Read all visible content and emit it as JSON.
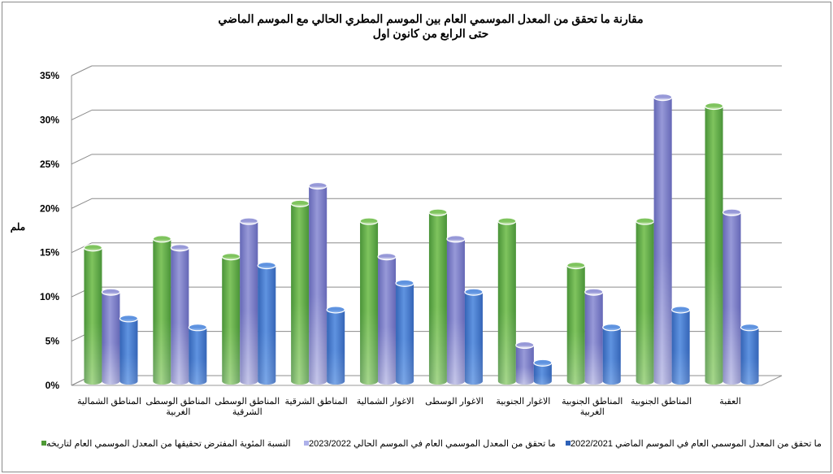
{
  "chart_data": {
    "type": "bar",
    "title": "مقارنة ما تحقق من المعدل الموسمي العام بين الموسم المطري الحالي مع الموسم الماضي",
    "subtitle": "حتى الرابع من كانون اول",
    "ylabel": "ملم",
    "ylim": [
      0,
      35
    ],
    "yticks": [
      "0%",
      "5%",
      "10%",
      "15%",
      "20%",
      "25%",
      "30%",
      "35%"
    ],
    "grid": true,
    "legend_position": "bottom",
    "categories": [
      [
        "المناطق الشمالية"
      ],
      [
        "المناطق الوسطى",
        "الغربية"
      ],
      [
        "المناطق الوسطى",
        "الشرقية"
      ],
      [
        "المناطق الشرقية"
      ],
      [
        "الاغوار الشمالية"
      ],
      [
        "الاغوار الوسطى"
      ],
      [
        "الاغوار الجنوبية"
      ],
      [
        "المناطق الجنوبية",
        "الغربية"
      ],
      [
        "المناطق الجنوبية"
      ],
      [
        "العقبة"
      ]
    ],
    "series": [
      {
        "name": "النسبة المئوية المفترض تحقيقها من المعدل الموسمي العام لتاريخه",
        "color": "#4e9a35",
        "values": [
          15,
          16,
          14,
          20,
          18,
          19,
          18,
          13,
          18,
          31
        ]
      },
      {
        "name": "ما تحقق من المعدل الموسمي العام في الموسم الحالي 2023/2022",
        "color": "#8c8fd0",
        "values": [
          10,
          15,
          18,
          22,
          14,
          16,
          4,
          10,
          32,
          19
        ]
      },
      {
        "name": "ما تحقق من المعدل الموسمي العام في الموسم الماضي 2022/2021",
        "color": "#2e62b8",
        "values": [
          7,
          6,
          13,
          8,
          11,
          10,
          2,
          6,
          8,
          6
        ]
      }
    ]
  }
}
